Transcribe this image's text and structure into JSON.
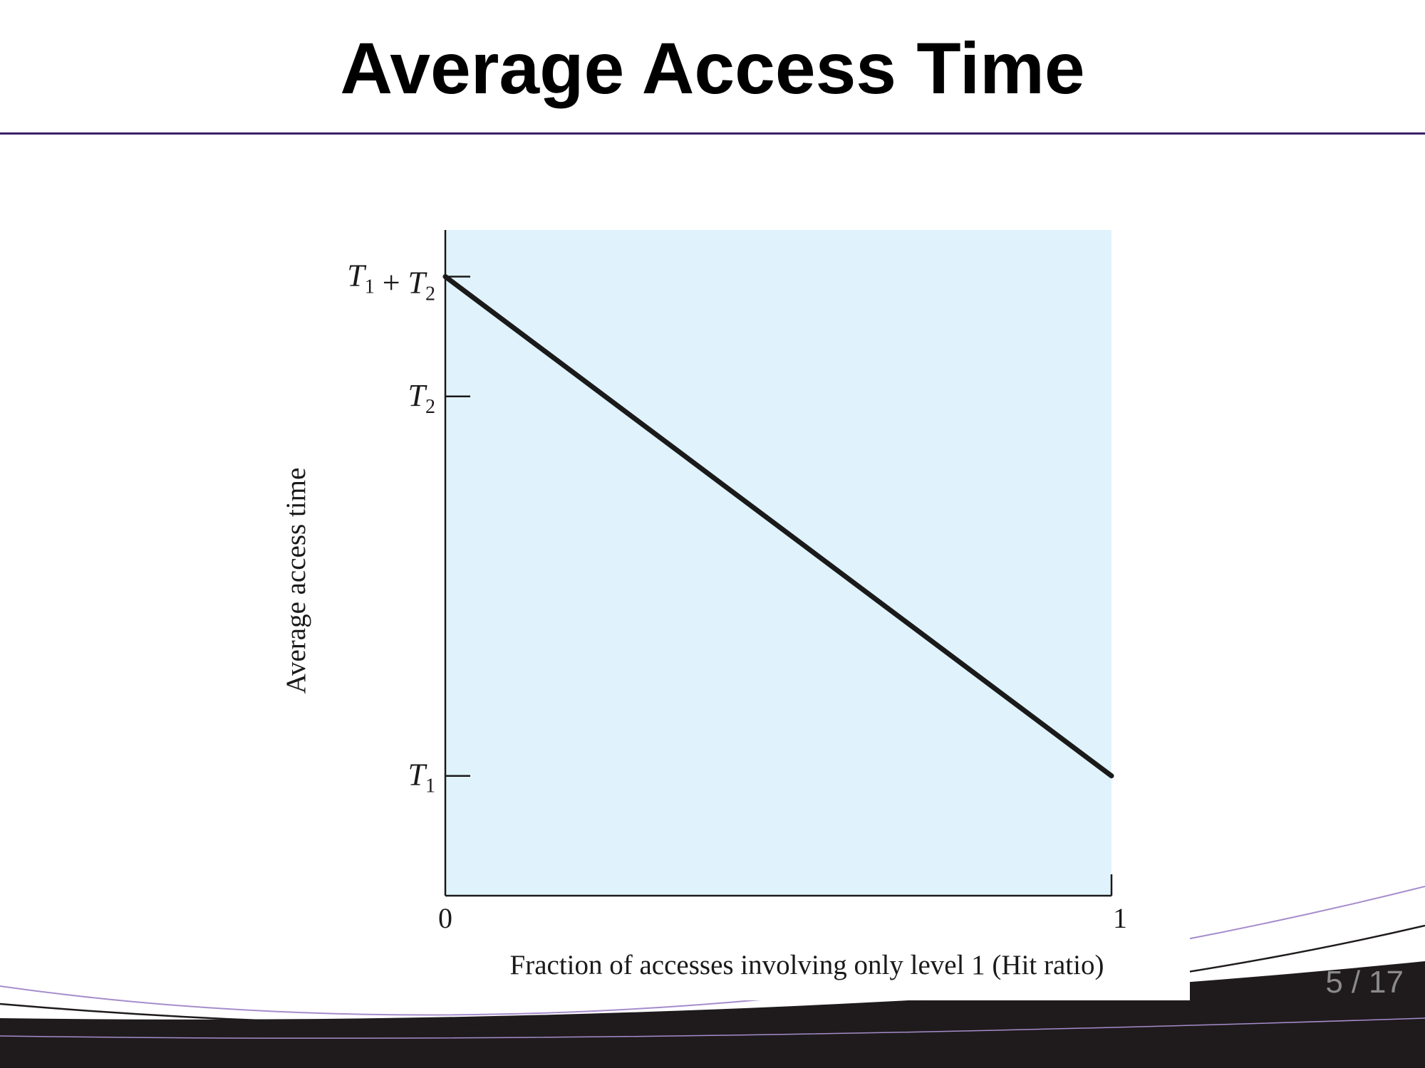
{
  "slide": {
    "title": "Average Access Time",
    "page": {
      "current": "5",
      "separator": "/",
      "total": "17"
    }
  },
  "colors": {
    "plot_background": "#e0f3fd",
    "line": "#1a1a1a",
    "title_rule": "#3b1f6b",
    "swoosh_dark": "#1f1b1d",
    "swoosh_light": "#a58ccb"
  },
  "chart_data": {
    "type": "line",
    "xlabel": "Fraction of accesses involving only level 1 (Hit ratio)",
    "ylabel": "Average access time",
    "xlim": [
      0,
      1
    ],
    "ylim": [
      0,
      1
    ],
    "x_ticks": [
      {
        "value": 0,
        "label": "0"
      },
      {
        "value": 1,
        "label": "1"
      }
    ],
    "y_ticks": [
      {
        "value": 0.18,
        "label": "T1"
      },
      {
        "value": 0.75,
        "label": "T2"
      },
      {
        "value": 0.93,
        "label": "T1 + T2"
      }
    ],
    "series": [
      {
        "x": [
          0,
          1
        ],
        "y": [
          0.93,
          0.18
        ]
      }
    ],
    "grid": false
  }
}
